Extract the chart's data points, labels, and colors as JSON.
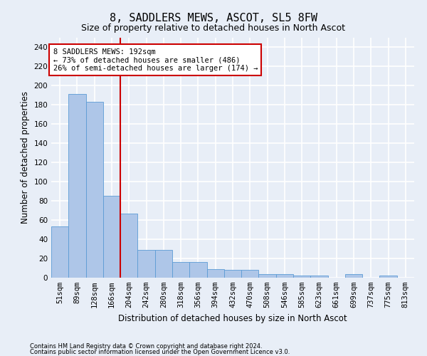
{
  "title": "8, SADDLERS MEWS, ASCOT, SL5 8FW",
  "subtitle": "Size of property relative to detached houses in North Ascot",
  "xlabel": "Distribution of detached houses by size in North Ascot",
  "ylabel": "Number of detached properties",
  "categories": [
    "51sqm",
    "89sqm",
    "128sqm",
    "166sqm",
    "204sqm",
    "242sqm",
    "280sqm",
    "318sqm",
    "356sqm",
    "394sqm",
    "432sqm",
    "470sqm",
    "508sqm",
    "546sqm",
    "585sqm",
    "623sqm",
    "661sqm",
    "699sqm",
    "737sqm",
    "775sqm",
    "813sqm"
  ],
  "values": [
    53,
    191,
    183,
    85,
    67,
    29,
    29,
    16,
    16,
    9,
    8,
    8,
    4,
    4,
    2,
    2,
    0,
    4,
    0,
    2,
    0
  ],
  "bar_color": "#aec6e8",
  "bar_edge_color": "#5b9bd5",
  "vline_x": 3.5,
  "vline_color": "#cc0000",
  "annotation_text": "8 SADDLERS MEWS: 192sqm\n← 73% of detached houses are smaller (486)\n26% of semi-detached houses are larger (174) →",
  "annotation_box_color": "#ffffff",
  "annotation_box_edge": "#cc0000",
  "ylim": [
    0,
    250
  ],
  "yticks": [
    0,
    20,
    40,
    60,
    80,
    100,
    120,
    140,
    160,
    180,
    200,
    220,
    240
  ],
  "footer1": "Contains HM Land Registry data © Crown copyright and database right 2024.",
  "footer2": "Contains public sector information licensed under the Open Government Licence v3.0.",
  "bg_color": "#e8eef7",
  "grid_color": "#ffffff",
  "title_fontsize": 11,
  "subtitle_fontsize": 9,
  "tick_fontsize": 7.5,
  "axis_label_fontsize": 8.5
}
